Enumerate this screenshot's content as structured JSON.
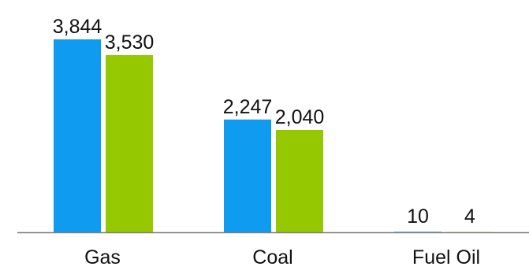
{
  "chart_data": {
    "type": "bar",
    "categories": [
      "Gas",
      "Coal",
      "Fuel Oil"
    ],
    "series": [
      {
        "values": [
          3844,
          2247,
          10
        ],
        "labels": [
          "3,844",
          "2,247",
          "10"
        ],
        "color": "#0f9bf0"
      },
      {
        "values": [
          3530,
          2040,
          4
        ],
        "labels": [
          "3,530",
          "2,040",
          "4"
        ],
        "color": "#96c800"
      }
    ],
    "axis_color": "#7f7f7f",
    "ylim": [
      0,
      4000
    ],
    "grid": false,
    "legend": "none"
  }
}
